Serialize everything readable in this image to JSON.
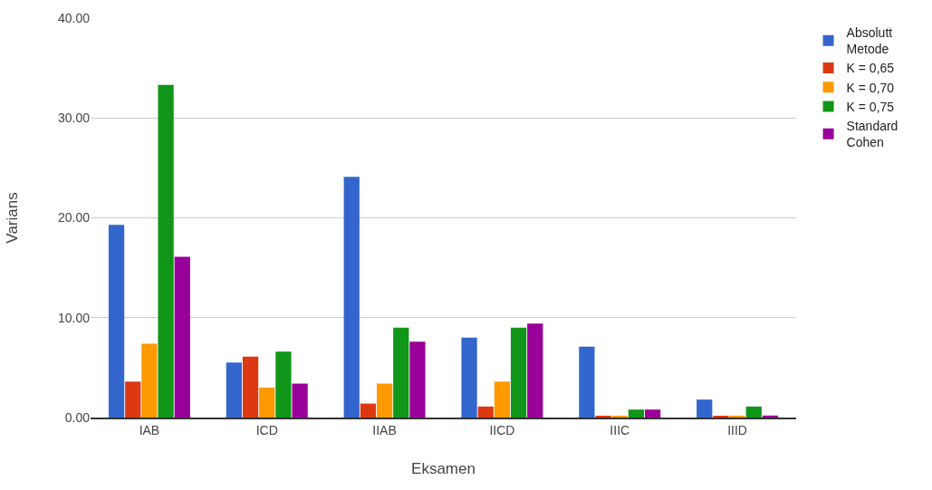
{
  "chart_data": {
    "type": "bar",
    "xlabel": "Eksamen",
    "ylabel": "Varians",
    "categories": [
      "IAB",
      "ICD",
      "IIAB",
      "IICD",
      "IIIC",
      "IIID"
    ],
    "series": [
      {
        "name": "Absolutt Metode",
        "color": "#3366cc",
        "values": [
          19.3,
          5.5,
          24.1,
          8.0,
          7.1,
          1.8
        ]
      },
      {
        "name": "K = 0,65",
        "color": "#dc3912",
        "values": [
          3.6,
          6.1,
          1.4,
          1.1,
          0.1,
          0.1
        ]
      },
      {
        "name": "K = 0,70",
        "color": "#ff9900",
        "values": [
          7.4,
          3.0,
          3.4,
          3.6,
          0.1,
          0.1
        ]
      },
      {
        "name": "K = 0,75",
        "color": "#109618",
        "values": [
          33.3,
          6.6,
          9.0,
          9.0,
          0.8,
          1.1
        ]
      },
      {
        "name": "Standard Cohen",
        "color": "#990099",
        "values": [
          16.1,
          3.4,
          7.6,
          9.4,
          0.8,
          0.2
        ]
      }
    ],
    "ylim": [
      0,
      40
    ],
    "yticks": [
      {
        "value": 0,
        "label": "0.00"
      },
      {
        "value": 10,
        "label": "10.00"
      },
      {
        "value": 20,
        "label": "20.00"
      },
      {
        "value": 30,
        "label": "30.00"
      },
      {
        "value": 40,
        "label": "40.00"
      }
    ],
    "grid": "y",
    "legend": "right"
  }
}
